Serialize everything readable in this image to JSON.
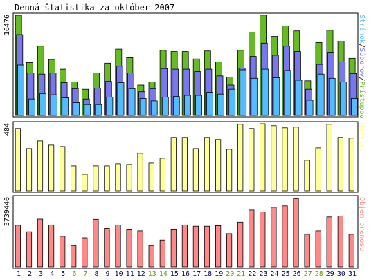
{
  "chart_data": {
    "type": "bar",
    "title": "Denná štatistika za október 2007",
    "days": [
      "1",
      "2",
      "3",
      "4",
      "5",
      "6",
      "7",
      "8",
      "9",
      "10",
      "11",
      "12",
      "13",
      "14",
      "15",
      "16",
      "17",
      "18",
      "19",
      "20",
      "21",
      "22",
      "23",
      "24",
      "25",
      "26",
      "27",
      "28",
      "29",
      "30",
      "31"
    ],
    "weekend_days": [
      "6",
      "7",
      "13",
      "14",
      "20",
      "21",
      "27",
      "28"
    ],
    "colors": {
      "hits": "#66bb22",
      "files": "#7777ee",
      "pages": "#55bbff",
      "visits": "#ffff99",
      "volume": "#ff8888",
      "weekday_label": "#000066",
      "weekend_label": "#669900",
      "frame": "#000000"
    },
    "panels": [
      {
        "id": "traffic",
        "max_label": "16476",
        "ylim": [
          0,
          16476
        ],
        "right_labels": [
          {
            "text": "Stránok",
            "color": "#55bbff"
          },
          {
            "text": "/",
            "color": "#000000"
          },
          {
            "text": "Súborov",
            "color": "#7777ee"
          },
          {
            "text": "/",
            "color": "#000000"
          },
          {
            "text": "Prístupov",
            "color": "#66bb22"
          }
        ],
        "series": [
          {
            "name": "Prístupov",
            "key": "hits",
            "values": [
              16476,
              8700,
              11400,
              9200,
              7600,
              5500,
              4300,
              7000,
              8600,
              10900,
              9500,
              5000,
              5500,
              10700,
              10500,
              10500,
              9300,
              10600,
              8800,
              6300,
              10700,
              13700,
              16500,
              13000,
              14700,
              13900,
              5700,
              12000,
              14000,
              12200,
              9400
            ]
          },
          {
            "name": "Súborov",
            "key": "files",
            "values": [
              13300,
              7000,
              6800,
              7000,
              5400,
              4400,
              2700,
              4500,
              5600,
              8100,
              7000,
              3900,
              4400,
              7700,
              7600,
              7600,
              7200,
              7600,
              6500,
              5000,
              7800,
              9700,
              11900,
              9900,
              11400,
              10500,
              4300,
              8400,
              10400,
              8800,
              6900
            ]
          },
          {
            "name": "Stránok",
            "key": "pages",
            "values": [
              8300,
              2700,
              3600,
              3400,
              2900,
              2100,
              1800,
              1800,
              3000,
              5400,
              4400,
              2800,
              2400,
              3000,
              3100,
              3300,
              3300,
              3800,
              3500,
              4300,
              7500,
              6100,
              7600,
              6200,
              7400,
              5800,
              2500,
              6800,
              6100,
              5500,
              2800
            ]
          }
        ]
      },
      {
        "id": "visits",
        "max_label": "484",
        "ylim": [
          0,
          484
        ],
        "right_labels": [
          {
            "text": "Návštev",
            "color": "#ffff99"
          }
        ],
        "series": [
          {
            "name": "Návštev",
            "key": "visits",
            "values": [
              450,
              305,
              360,
              330,
              320,
              180,
              120,
              180,
              180,
              195,
              190,
              270,
              200,
              235,
              385,
              385,
              305,
              385,
              370,
              300,
              480,
              450,
              484,
              470,
              455,
              460,
              220,
              310,
              480,
              385,
              380
            ]
          }
        ]
      },
      {
        "id": "volume",
        "max_label": "3739440",
        "ylim": [
          0,
          3739440
        ],
        "right_labels": [
          {
            "text": "Objem prenosu",
            "color": "#ff8888"
          }
        ],
        "series": [
          {
            "name": "Objem prenosu",
            "key": "volume",
            "values": [
              2250000,
              1900000,
              2580000,
              2260000,
              1650000,
              1150000,
              1570000,
              2570000,
              2080000,
              2260000,
              2040000,
              1950000,
              1150000,
              1450000,
              2040000,
              2260000,
              2200000,
              2200000,
              2230000,
              1800000,
              2420000,
              3070000,
              2970000,
              3220000,
              3300000,
              3690000,
              1760000,
              1950000,
              2700000,
              2750000,
              1760000
            ]
          }
        ]
      }
    ]
  }
}
